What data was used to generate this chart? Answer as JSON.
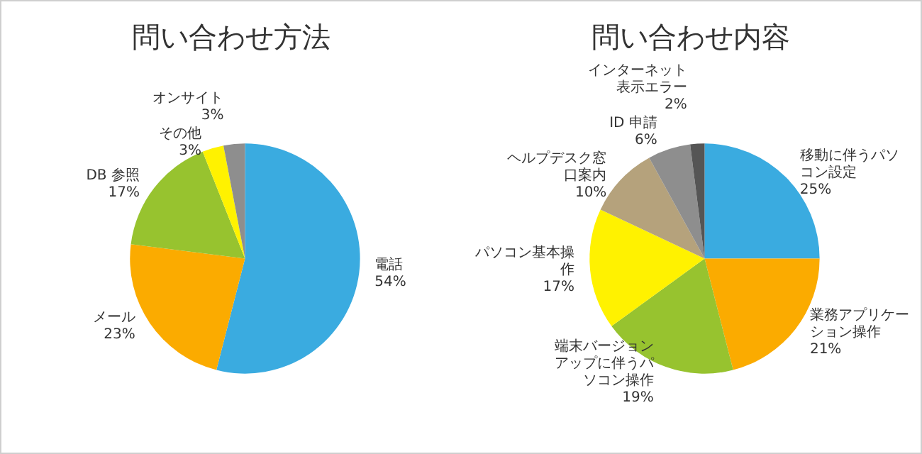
{
  "chart_data": [
    {
      "type": "pie",
      "title": "問い合わせ方法",
      "categories": [
        "電話",
        "メール",
        "DB 参照",
        "その他",
        "オンサイト"
      ],
      "values": [
        54,
        23,
        17,
        3,
        3
      ],
      "value_labels": [
        "54%",
        "23%",
        "17%",
        "3%",
        "3%"
      ],
      "colors": [
        "#3aabe0",
        "#fbab00",
        "#97c32f",
        "#fff200",
        "#8e8e8e"
      ]
    },
    {
      "type": "pie",
      "title": "問い合わせ内容",
      "categories": [
        "移動に伴うパソコン設定",
        "業務アプリケーション操作",
        "端末バージョンアップに伴うパソコン操作",
        "パソコン基本操作",
        "ヘルプデスク窓口案内",
        "ID 申請",
        "インターネット表示エラー"
      ],
      "values": [
        25,
        21,
        19,
        17,
        10,
        6,
        2
      ],
      "value_labels": [
        "25%",
        "21%",
        "19%",
        "17%",
        "10%",
        "6%",
        "2%"
      ],
      "colors": [
        "#3aabe0",
        "#fbab00",
        "#97c32f",
        "#fff200",
        "#b5a27c",
        "#8e8e8e",
        "#555555"
      ]
    }
  ]
}
